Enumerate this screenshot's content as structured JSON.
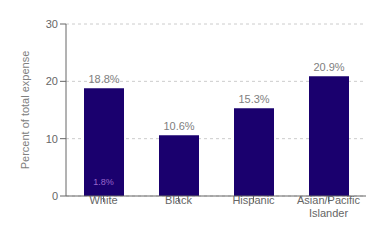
{
  "chart_data": {
    "type": "bar",
    "categories": [
      "White",
      "Black",
      "Hispanic",
      "Asian/Pacific\nIslander"
    ],
    "values": [
      18.8,
      10.6,
      15.3,
      20.9
    ],
    "value_labels": [
      "18.8%",
      "10.6%",
      "15.3%",
      "20.9%"
    ],
    "data_labels": true,
    "color": "#1a006e",
    "ylabel": "Percent of total expense",
    "ylim": [
      0,
      30
    ],
    "yticks": [
      0,
      10,
      20,
      30
    ],
    "grid": true,
    "annotations": [
      {
        "text": "1.8%",
        "x": "White",
        "y": 1.0,
        "color": "#9966cc"
      }
    ]
  }
}
